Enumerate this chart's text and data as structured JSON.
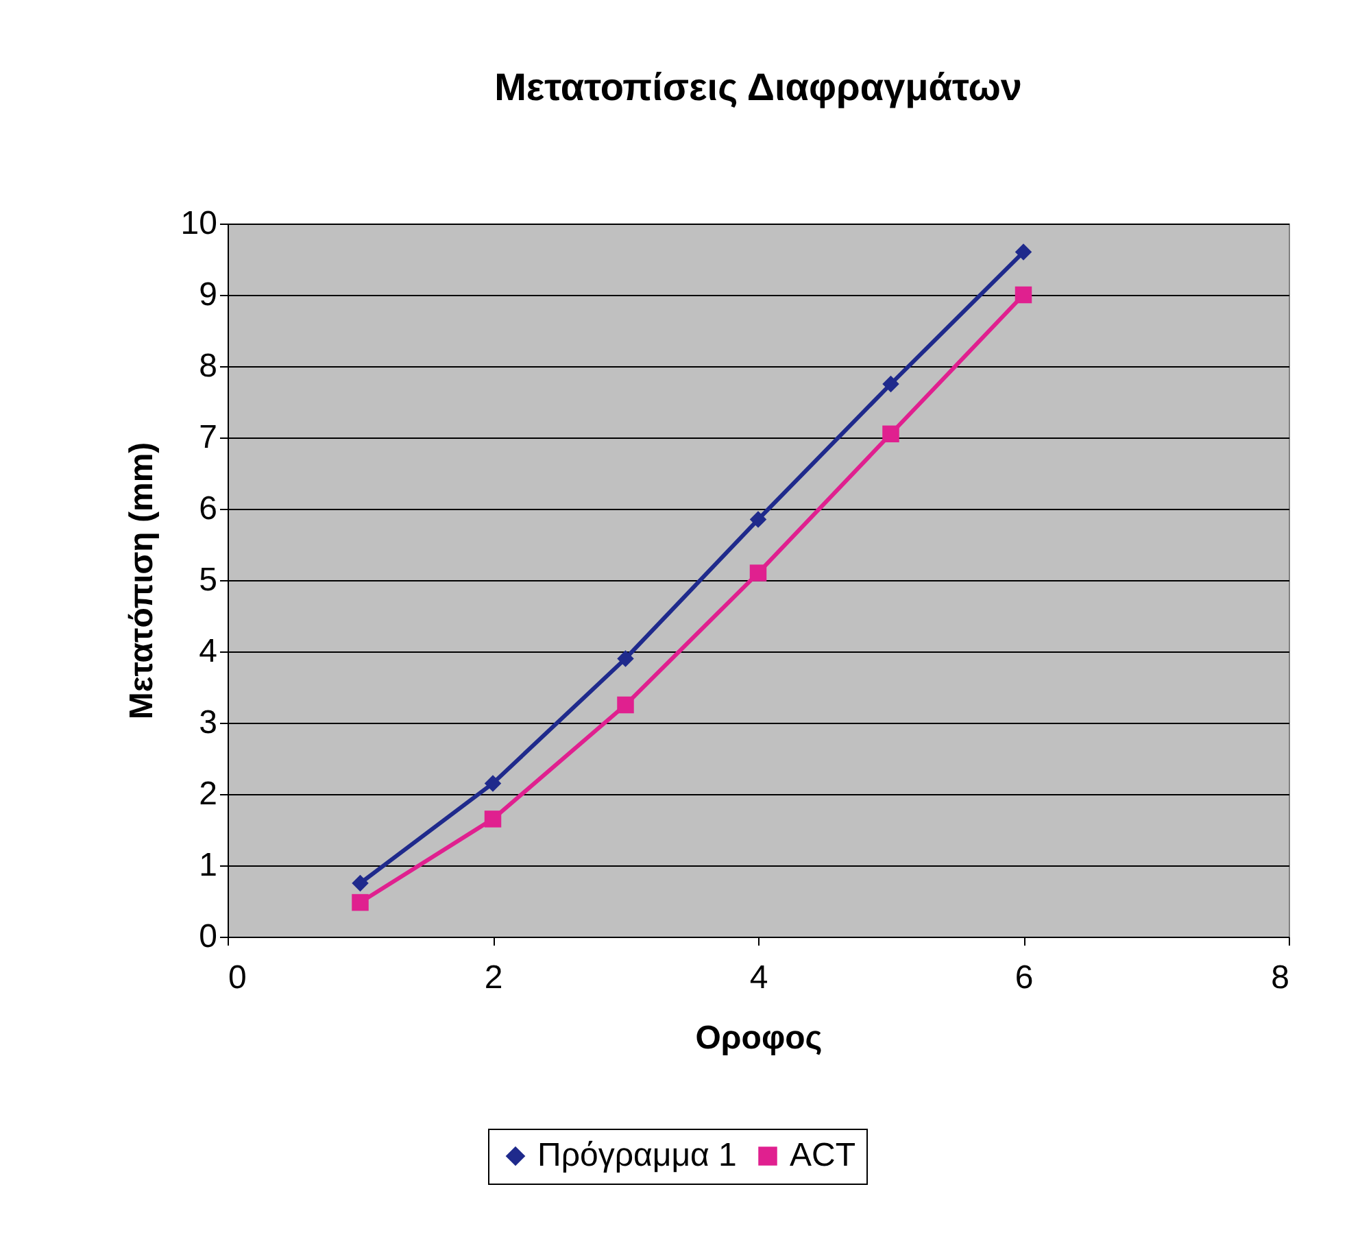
{
  "chart_data": {
    "type": "line",
    "title": "Μετατοπίσεις Διαφραγμάτων",
    "xlabel": "Οροφος",
    "ylabel": "Μετατόπιση (mm)",
    "x": [
      1,
      2,
      3,
      4,
      5,
      6
    ],
    "series": [
      {
        "name": "Πρόγραμμα 1",
        "color": "#1f2a8c",
        "marker": "diamond",
        "values": [
          0.75,
          2.15,
          3.9,
          5.85,
          7.75,
          9.6
        ]
      },
      {
        "name": "ACT",
        "color": "#e0208f",
        "marker": "square",
        "values": [
          0.48,
          1.65,
          3.25,
          5.1,
          7.05,
          9.0
        ]
      }
    ],
    "xlim": [
      0,
      8
    ],
    "xticks": [
      0,
      2,
      4,
      6,
      8
    ],
    "ylim": [
      0,
      10
    ],
    "yticks": [
      0,
      1,
      2,
      3,
      4,
      5,
      6,
      7,
      8,
      9,
      10
    ],
    "grid": "y",
    "legend": "bottom",
    "line_style": "solid"
  }
}
